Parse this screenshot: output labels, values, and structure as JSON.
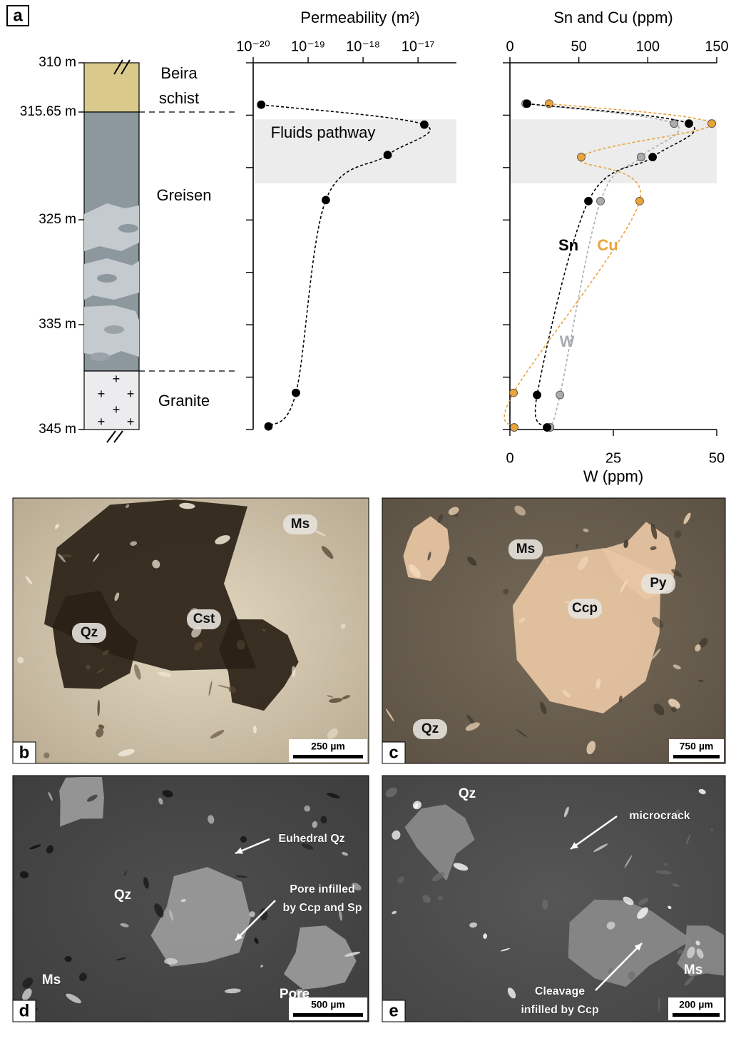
{
  "panel_labels": [
    "a",
    "b",
    "c",
    "d",
    "e"
  ],
  "column": {
    "depth_labels": [
      "310 m",
      "315.65 m",
      "325 m",
      "335 m",
      "345 m"
    ],
    "units": [
      [
        "Beira",
        "schist"
      ],
      [
        "Greisen"
      ],
      [
        "Granite"
      ]
    ]
  },
  "chart_data": [
    {
      "type": "scatter",
      "title": "Permeability (m²)",
      "annotation": "Fluids pathway",
      "band": [
        315.4,
        321.5
      ],
      "xscale": "log",
      "xlim": [
        1e-20,
        5e-17
      ],
      "xticks": [
        {
          "value": 1e-20,
          "label": "10⁻²⁰"
        },
        {
          "value": 1e-19,
          "label": "10⁻¹⁹"
        },
        {
          "value": 1e-18,
          "label": "10⁻¹⁸"
        },
        {
          "value": 1e-17,
          "label": "10⁻¹⁷"
        }
      ],
      "ylim": [
        310,
        345
      ],
      "yticks": [
        310,
        315,
        320,
        325,
        330,
        335,
        340,
        345
      ],
      "series": [
        {
          "color": "#000000",
          "values": [
            1.4e-20,
            1.3e-17,
            2.8e-18,
            2.1e-19,
            6e-20,
            1.9e-20
          ],
          "y": [
            314.0,
            315.9,
            318.8,
            323.1,
            341.5,
            344.7
          ]
        }
      ]
    },
    {
      "type": "scatter",
      "title": "Sn and Cu (ppm)",
      "x2_title": "W (ppm)",
      "band": [
        315.4,
        321.5
      ],
      "xlim": [
        0,
        150
      ],
      "xticks": [
        0,
        50,
        100,
        150
      ],
      "x2lim": [
        0,
        50
      ],
      "x2ticks": [
        0,
        25,
        50
      ],
      "ylim": [
        310,
        345
      ],
      "yticks": [
        310,
        315,
        320,
        325,
        330,
        335,
        340,
        345
      ],
      "series": [
        {
          "name": "W",
          "color": "#a9acae",
          "axis": "x2",
          "values": [
            3.8,
            39.7,
            31.7,
            21.9,
            12.1,
            9.7
          ],
          "y": [
            313.9,
            315.8,
            319.0,
            323.2,
            341.7,
            344.8
          ]
        },
        {
          "name": "Cu",
          "color": "#e9a43a",
          "values": [
            28.4,
            146.4,
            51.7,
            94.1,
            2.6,
            3.1
          ],
          "y": [
            313.9,
            315.8,
            319.0,
            323.2,
            341.5,
            344.8
          ]
        },
        {
          "name": "Sn",
          "color": "#000000",
          "values": [
            12.4,
            129.8,
            103.5,
            56.9,
            19.7,
            26.9
          ],
          "y": [
            313.9,
            315.8,
            319.0,
            323.2,
            341.7,
            344.8
          ]
        }
      ]
    }
  ],
  "photos": [
    {
      "scale": "250 µm",
      "minerals": [
        "Ms",
        "Cst",
        "Qz"
      ],
      "annotations": []
    },
    {
      "scale": "750 µm",
      "minerals": [
        "Ms",
        "Py",
        "Ccp",
        "Qz"
      ],
      "annotations": []
    },
    {
      "scale": "500 µm",
      "minerals": [
        "Qz",
        "Ms",
        "Pore"
      ],
      "annotations": [
        [
          "Euhedral Qz"
        ],
        [
          "Pore infilled",
          "by Ccp and Sp"
        ]
      ]
    },
    {
      "scale": "200 µm",
      "minerals": [
        "Qz",
        "Ms"
      ],
      "annotations": [
        [
          "microcrack"
        ],
        [
          "Cleavage",
          "infilled by Ccp"
        ]
      ]
    }
  ]
}
